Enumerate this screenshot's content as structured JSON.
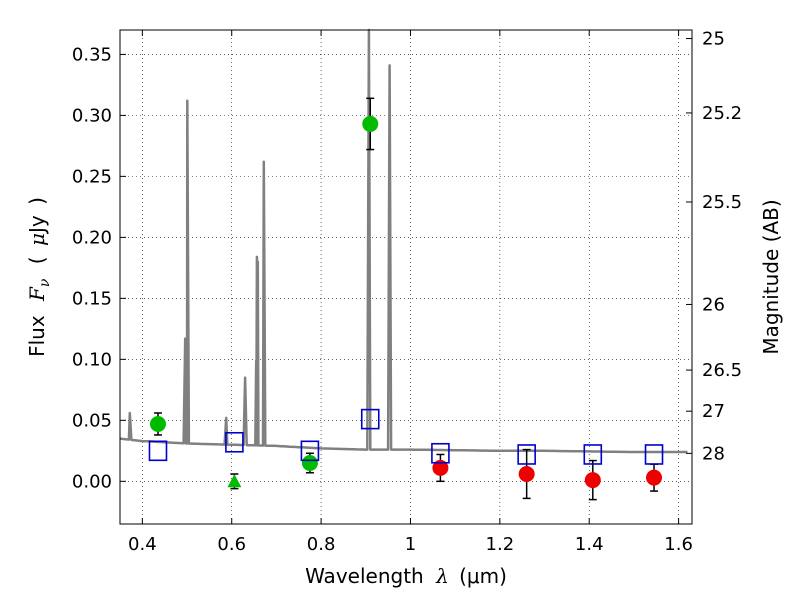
{
  "chart_data": {
    "type": "scatter",
    "xlabel": {
      "text": "Wavelength",
      "symbol": "λ",
      "unit": "(μm)"
    },
    "ylabel": {
      "text": "Flux",
      "symbol": "F",
      "sub": "ν",
      "unit_open": "(",
      "unit_sym": "μ",
      "unit": "Jy",
      "unit_close": ")"
    },
    "y2label": "Magnitude (AB)",
    "xlim": [
      0.35,
      1.63
    ],
    "ylim": [
      -0.035,
      0.37
    ],
    "xticks": [
      0.4,
      0.6,
      0.8,
      1.0,
      1.2,
      1.4,
      1.6
    ],
    "xtick_labels": [
      "0.4",
      "0.6",
      "0.8",
      "1",
      "1.2",
      "1.4",
      "1.6"
    ],
    "yticks": [
      0.0,
      0.05,
      0.1,
      0.15,
      0.2,
      0.25,
      0.3,
      0.35
    ],
    "ytick_labels": [
      "0.00",
      "0.05",
      "0.10",
      "0.15",
      "0.20",
      "0.25",
      "0.30",
      "0.35"
    ],
    "y2ticks": [
      {
        "label": "25",
        "flux": 0.363
      },
      {
        "label": "25.2",
        "flux": 0.302
      },
      {
        "label": "25.5",
        "flux": 0.229
      },
      {
        "label": "26",
        "flux": 0.145
      },
      {
        "label": "26.5",
        "flux": 0.0912
      },
      {
        "label": "27",
        "flux": 0.0575
      },
      {
        "label": "28",
        "flux": 0.0229
      }
    ],
    "grid": true,
    "colors": {
      "model": "#808080",
      "green": "#00bb00",
      "red": "#ee0000",
      "box": "#0000cc",
      "err": "#000000"
    },
    "model_spectrum": {
      "continuum": [
        [
          0.35,
          0.035
        ],
        [
          0.4,
          0.033
        ],
        [
          0.45,
          0.032
        ],
        [
          0.5,
          0.031
        ],
        [
          0.6,
          0.03
        ],
        [
          0.7,
          0.029
        ],
        [
          0.8,
          0.027
        ],
        [
          0.9,
          0.026
        ],
        [
          1.0,
          0.026
        ],
        [
          1.1,
          0.0255
        ],
        [
          1.2,
          0.025
        ],
        [
          1.3,
          0.025
        ],
        [
          1.4,
          0.0245
        ],
        [
          1.5,
          0.024
        ],
        [
          1.63,
          0.024
        ]
      ],
      "lines": [
        {
          "x": 0.372,
          "peak": 0.056
        },
        {
          "x": 0.4959,
          "peak": 0.117
        },
        {
          "x": 0.5007,
          "peak": 0.312
        },
        {
          "x": 0.5876,
          "peak": 0.052
        },
        {
          "x": 0.63,
          "peak": 0.085
        },
        {
          "x": 0.6548,
          "peak": 0.099
        },
        {
          "x": 0.6563,
          "peak": 0.184
        },
        {
          "x": 0.6584,
          "peak": 0.18
        },
        {
          "x": 0.6717,
          "peak": 0.262
        },
        {
          "x": 0.9069,
          "peak": 0.37
        },
        {
          "x": 0.9532,
          "peak": 0.341
        }
      ]
    },
    "series": [
      {
        "marker": "circle-green",
        "points": [
          {
            "x": 0.435,
            "y": 0.047,
            "err": 0.009
          },
          {
            "x": 0.775,
            "y": 0.015,
            "err": 0.008
          },
          {
            "x": 0.91,
            "y": 0.293,
            "err": 0.021
          }
        ]
      },
      {
        "marker": "triangle-green",
        "points": [
          {
            "x": 0.606,
            "y": 0.0,
            "err": 0.006
          }
        ]
      },
      {
        "marker": "circle-red",
        "points": [
          {
            "x": 1.067,
            "y": 0.011,
            "err": 0.011
          },
          {
            "x": 1.26,
            "y": 0.006,
            "err": 0.02
          },
          {
            "x": 1.408,
            "y": 0.001,
            "err": 0.016
          },
          {
            "x": 1.545,
            "y": 0.003,
            "err": 0.011
          }
        ]
      },
      {
        "marker": "square-blue",
        "points": [
          {
            "x": 0.435,
            "y": 0.025
          },
          {
            "x": 0.606,
            "y": 0.032
          },
          {
            "x": 0.775,
            "y": 0.025
          },
          {
            "x": 0.91,
            "y": 0.051
          },
          {
            "x": 1.067,
            "y": 0.023
          },
          {
            "x": 1.26,
            "y": 0.022
          },
          {
            "x": 1.408,
            "y": 0.022
          },
          {
            "x": 1.545,
            "y": 0.022
          }
        ]
      }
    ]
  }
}
